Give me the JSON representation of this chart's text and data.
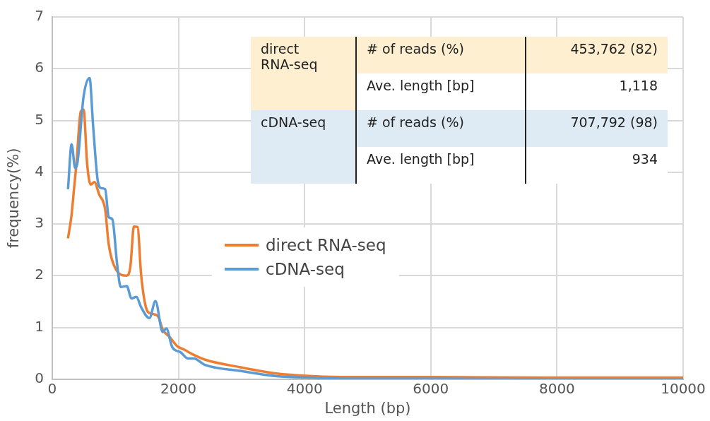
{
  "chart_data": {
    "type": "line",
    "xlabel": "Length (bp)",
    "ylabel": "frequency(%)",
    "xlim": [
      0,
      10000
    ],
    "xticks": [
      0,
      2000,
      4000,
      6000,
      8000,
      10000
    ],
    "ylim": [
      0,
      7
    ],
    "yticks": [
      0,
      1,
      2,
      3,
      4,
      5,
      6,
      7
    ],
    "grid": true,
    "legend": "center",
    "marker": "none",
    "line_style": "solid",
    "series": [
      {
        "name": "direct RNA-seq",
        "color": "#ed7d31",
        "x": [
          250,
          307,
          345,
          383,
          452,
          497,
          554,
          611,
          668,
          744,
          839,
          896,
          1010,
          1181,
          1238,
          1295,
          1352,
          1409,
          1485,
          1560,
          1674,
          1751,
          1865,
          1979,
          2093,
          2244,
          2415,
          2984,
          3554,
          4123,
          4692,
          6000,
          8000,
          10000
        ],
        "values": [
          2.72,
          3.18,
          3.67,
          4.15,
          5.17,
          5.21,
          4.15,
          3.76,
          3.81,
          3.57,
          3.28,
          2.6,
          2.12,
          2.0,
          2.17,
          2.95,
          2.94,
          2.02,
          1.39,
          1.27,
          1.22,
          0.96,
          0.81,
          0.64,
          0.57,
          0.47,
          0.38,
          0.23,
          0.11,
          0.06,
          0.04,
          0.04,
          0.03,
          0.03
        ]
      },
      {
        "name": "cDNA-seq",
        "color": "#5b9bd5",
        "x": [
          250,
          307,
          364,
          402,
          497,
          592,
          649,
          725,
          782,
          839,
          896,
          953,
          1029,
          1086,
          1181,
          1257,
          1333,
          1409,
          1541,
          1636,
          1751,
          1808,
          1902,
          2035,
          2149,
          2244,
          2415,
          2984,
          3554,
          4123,
          4692,
          6000,
          8000,
          10000
        ],
        "values": [
          3.67,
          4.54,
          4.08,
          4.2,
          5.46,
          5.82,
          4.88,
          3.81,
          3.69,
          3.67,
          3.13,
          3.09,
          2.22,
          1.78,
          1.8,
          1.56,
          1.59,
          1.39,
          1.18,
          1.51,
          0.91,
          0.98,
          0.62,
          0.52,
          0.4,
          0.4,
          0.28,
          0.16,
          0.06,
          0.03,
          0.01,
          0.01,
          0,
          0
        ]
      }
    ],
    "annotations": [
      "direct RNA-seq",
      "# of reads (%)",
      "453,762 (82)",
      "Ave. length [bp]",
      "1,118",
      "cDNA-seq",
      "# of reads (%)",
      "707,792 (98)",
      "Ave. length [bp]",
      "934"
    ]
  }
}
